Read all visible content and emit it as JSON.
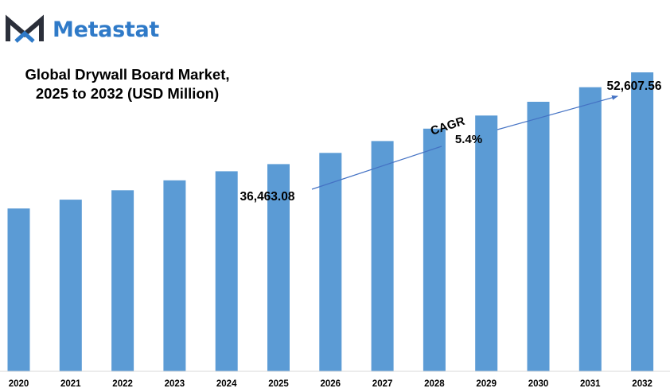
{
  "brand": {
    "name": "Metastat",
    "icon": "metastat-m-logo-icon",
    "color_dark": "#2b2f3a",
    "color_accent": "#2f7ac8"
  },
  "chart_data": {
    "type": "bar",
    "title_lines": [
      "Global Drywall Board Market,",
      "2025 to 2032 (USD Million)"
    ],
    "categories": [
      "2020",
      "2021",
      "2022",
      "2023",
      "2024",
      "2025",
      "2026",
      "2027",
      "2028",
      "2029",
      "2030",
      "2031",
      "2032"
    ],
    "values": [
      28650,
      30200,
      31850,
      33600,
      35200,
      36463.08,
      38430,
      40510,
      42700,
      45000,
      47430,
      49990,
      52607.56
    ],
    "series_color": "#5b9bd5",
    "ylim": [
      0,
      57500
    ],
    "grid": false,
    "legend": "none",
    "annotations": {
      "start_label": "36,463.08",
      "end_label": "52,607.56",
      "cagr_label": "CAGR",
      "cagr_value": "5.4%"
    }
  }
}
